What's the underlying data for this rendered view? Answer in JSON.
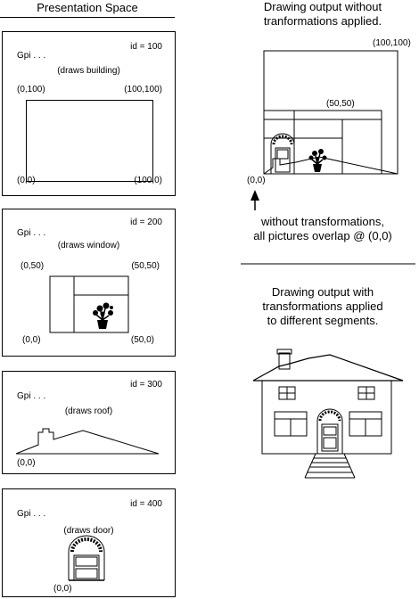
{
  "left_title": "Presentation Space",
  "panels": [
    {
      "id_label": "id = 100",
      "gpi": "Gpi . . .",
      "action": "(draws building)",
      "labels": {
        "top_left": "(0,100)",
        "top_right": "(100,100)",
        "bottom_left": "(0,0)",
        "bottom_right": "(100,0)"
      }
    },
    {
      "id_label": "id = 200",
      "gpi": "Gpi . . .",
      "action": "(draws window)",
      "labels": {
        "top_left": "(0,50)",
        "top_right": "(50,50)",
        "bottom_left": "(0,0)",
        "bottom_right": "(50,0)"
      }
    },
    {
      "id_label": "id = 300",
      "gpi": "Gpi . . .",
      "action": "(draws roof)",
      "labels": {
        "bottom_left": "(0,0)"
      }
    },
    {
      "id_label": "id = 400",
      "gpi": "Gpi . . .",
      "action": "(draws door)",
      "labels": {
        "bottom_left": "(0,0)"
      }
    }
  ],
  "right_top": {
    "title_line1": "Drawing output without",
    "title_line2": "tranformations applied.",
    "label_100_100": "(100,100)",
    "label_50_50": "(50,50)",
    "label_0_0": "(0,0)",
    "note_line1": "without transformations,",
    "note_line2": "all pictures overlap @ (0,0)"
  },
  "right_bottom": {
    "title_line1": "Drawing output with",
    "title_line2": "transformations applied",
    "title_line3": "to different segments."
  }
}
